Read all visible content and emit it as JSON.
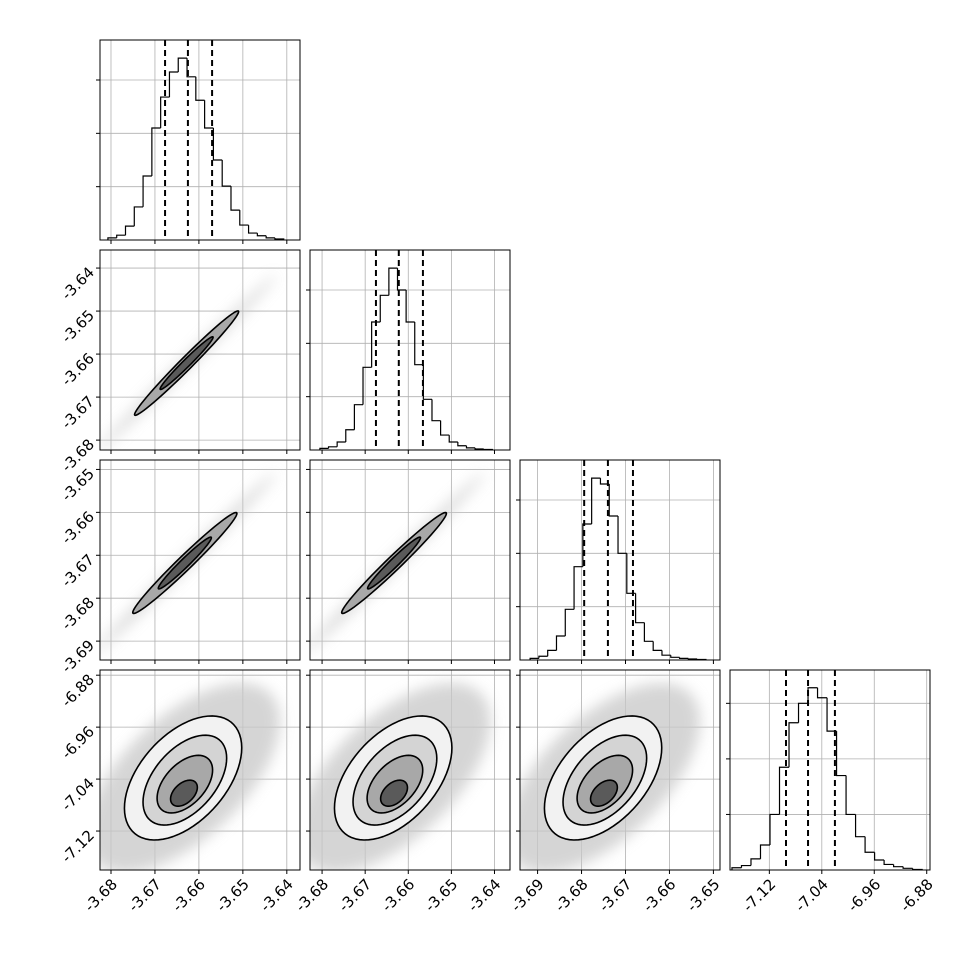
{
  "chart_data": [
    {
      "type": "histogram",
      "xlim": [
        -3.6825,
        -3.637
      ],
      "xticks": [
        -3.68,
        -3.67,
        -3.66,
        -3.65,
        -3.64
      ],
      "ylim": [
        0,
        375
      ],
      "yticks": [
        100,
        200,
        300
      ],
      "bins": [
        -3.6807,
        -3.6787,
        -3.6767,
        -3.6747,
        -3.6727,
        -3.6707,
        -3.6687,
        -3.6667,
        -3.6647,
        -3.6627,
        -3.6607,
        -3.6587,
        -3.6567,
        -3.6547,
        -3.6527,
        -3.6507,
        -3.6487,
        -3.6467,
        -3.6447,
        -3.6427,
        -3.6407
      ],
      "values": [
        4,
        9,
        26,
        62,
        120,
        210,
        268,
        315,
        341,
        306,
        262,
        210,
        150,
        101,
        56,
        28,
        13,
        8,
        4,
        2
      ],
      "quantiles": [
        -3.6677,
        -3.6625,
        -3.657
      ]
    },
    {
      "type": "density",
      "xlim": [
        -3.6825,
        -3.637
      ],
      "xticks": [
        -3.68,
        -3.67,
        -3.66,
        -3.65,
        -3.64
      ],
      "ylim": [
        -3.6823,
        -3.6358
      ],
      "yticks": [
        -3.68,
        -3.67,
        -3.66,
        -3.65,
        -3.64
      ],
      "cloud": {
        "center": [
          -3.6628,
          -3.6621
        ],
        "a": [
          0.0205,
          0.0205
        ],
        "b": [
          -0.0008,
          0.0008
        ]
      },
      "contours": [
        {
          "center": [
            -3.6628,
            -3.6621
          ],
          "a": [
            0.0118,
            0.0121
          ],
          "b": [
            -0.001,
            0.001
          ]
        },
        {
          "center": [
            -3.6628,
            -3.6621
          ],
          "a": [
            0.006,
            0.0061
          ],
          "b": [
            -0.0006,
            0.0006
          ]
        }
      ]
    },
    {
      "type": "histogram",
      "xlim": [
        -3.6828,
        -3.6364
      ],
      "xticks": [
        -3.68,
        -3.67,
        -3.66,
        -3.65,
        -3.64
      ],
      "ylim": [
        0,
        375
      ],
      "yticks": [
        100,
        200,
        300
      ],
      "bins": [
        -3.6805,
        -3.6785,
        -3.6765,
        -3.6745,
        -3.6725,
        -3.6705,
        -3.6685,
        -3.6665,
        -3.6645,
        -3.6625,
        -3.6605,
        -3.6585,
        -3.6565,
        -3.6545,
        -3.6525,
        -3.6505,
        -3.6485,
        -3.6465,
        -3.6445,
        -3.6425,
        -3.6405
      ],
      "values": [
        3,
        6,
        15,
        38,
        85,
        155,
        240,
        290,
        341,
        300,
        240,
        160,
        95,
        55,
        28,
        15,
        8,
        4,
        2,
        1
      ],
      "quantiles": [
        -3.6675,
        -3.6622,
        -3.6566
      ]
    },
    {
      "type": "density",
      "xlim": [
        -3.6825,
        -3.637
      ],
      "xticks": [
        -3.68,
        -3.67,
        -3.66,
        -3.65,
        -3.64
      ],
      "ylim": [
        -3.6944,
        -3.6478
      ],
      "yticks": [
        -3.69,
        -3.68,
        -3.67,
        -3.66,
        -3.65
      ],
      "cloud": {
        "center": [
          -3.6632,
          -3.6718
        ],
        "a": [
          0.0207,
          0.021
        ],
        "b": [
          -0.0009,
          0.0009
        ]
      },
      "contours": [
        {
          "center": [
            -3.6632,
            -3.6718
          ],
          "a": [
            0.0118,
            0.0117
          ],
          "b": [
            -0.0011,
            0.0012
          ]
        },
        {
          "center": [
            -3.6632,
            -3.6718
          ],
          "a": [
            0.006,
            0.006
          ],
          "b": [
            -0.0007,
            0.0007
          ]
        }
      ]
    },
    {
      "type": "density",
      "xlim": [
        -3.6828,
        -3.6364
      ],
      "xticks": [
        -3.68,
        -3.67,
        -3.66,
        -3.65,
        -3.64
      ],
      "ylim": [
        -3.6944,
        -3.6478
      ],
      "yticks": [
        -3.69,
        -3.68,
        -3.67,
        -3.66,
        -3.65
      ],
      "cloud": {
        "center": [
          -3.6633,
          -3.6718
        ],
        "a": [
          0.021,
          0.021
        ],
        "b": [
          -0.0009,
          0.0009
        ]
      },
      "contours": [
        {
          "center": [
            -3.6633,
            -3.6718
          ],
          "a": [
            0.0121,
            0.0117
          ],
          "b": [
            -0.0011,
            0.0012
          ]
        },
        {
          "center": [
            -3.6633,
            -3.6718
          ],
          "a": [
            0.0061,
            0.006
          ],
          "b": [
            -0.0007,
            0.0007
          ]
        }
      ]
    },
    {
      "type": "histogram",
      "xlim": [
        -3.694,
        -3.6485
      ],
      "xticks": [
        -3.69,
        -3.68,
        -3.67,
        -3.66,
        -3.65
      ],
      "ylim": [
        0,
        375
      ],
      "yticks": [
        100,
        200,
        300
      ],
      "bins": [
        -3.6917,
        -3.6897,
        -3.6877,
        -3.6857,
        -3.6837,
        -3.6817,
        -3.6797,
        -3.6777,
        -3.6757,
        -3.6737,
        -3.6717,
        -3.6697,
        -3.6677,
        -3.6657,
        -3.6637,
        -3.6617,
        -3.6597,
        -3.6577,
        -3.6557,
        -3.6537,
        -3.6517
      ],
      "values": [
        3,
        7,
        18,
        45,
        95,
        175,
        255,
        341,
        330,
        270,
        200,
        125,
        70,
        35,
        18,
        9,
        5,
        3,
        2,
        1
      ],
      "quantiles": [
        -3.6794,
        -3.674,
        -3.6683
      ]
    },
    {
      "type": "density",
      "xlim": [
        -3.6825,
        -3.637
      ],
      "xticks": [
        -3.68,
        -3.67,
        -3.66,
        -3.65,
        -3.64
      ],
      "ylim": [
        -7.18,
        -6.872
      ],
      "yticks": [
        -7.12,
        -7.04,
        -6.96,
        -6.88
      ],
      "cloud": {
        "center": [
          -3.6636,
          -7.0383
        ],
        "a": [
          0.0182,
          0.1386
        ],
        "b": [
          -0.0125,
          0.0462
        ]
      },
      "contours": [
        {
          "center": [
            -3.6636,
            -7.0383
          ],
          "a": [
            0.0102,
            0.0893
          ],
          "b": [
            -0.0086,
            0.0339
          ]
        },
        {
          "center": [
            -3.6632,
            -7.0416
          ],
          "a": [
            0.0073,
            0.0647
          ],
          "b": [
            -0.0061,
            0.0246
          ]
        },
        {
          "center": [
            -3.6632,
            -7.0478
          ],
          "a": [
            0.0048,
            0.0416
          ],
          "b": [
            -0.0041,
            0.0154
          ]
        },
        {
          "center": [
            -3.6634,
            -7.0617
          ],
          "a": [
            0.0023,
            0.0185
          ],
          "b": [
            -0.002,
            0.0077
          ]
        }
      ]
    },
    {
      "type": "density",
      "xlim": [
        -3.6828,
        -3.6364
      ],
      "xticks": [
        -3.68,
        -3.67,
        -3.66,
        -3.65,
        -3.64
      ],
      "ylim": [
        -7.18,
        -6.872
      ],
      "yticks": [
        -7.12,
        -7.04,
        -6.96,
        -6.88
      ],
      "cloud": {
        "center": [
          -3.6635,
          -7.0383
        ],
        "a": [
          0.0186,
          0.1386
        ],
        "b": [
          -0.0128,
          0.0462
        ]
      },
      "contours": [
        {
          "center": [
            -3.6635,
            -7.0383
          ],
          "a": [
            0.0104,
            0.0893
          ],
          "b": [
            -0.0088,
            0.0339
          ]
        },
        {
          "center": [
            -3.6631,
            -7.0416
          ],
          "a": [
            0.0074,
            0.0647
          ],
          "b": [
            -0.0063,
            0.0246
          ]
        },
        {
          "center": [
            -3.6631,
            -7.0478
          ],
          "a": [
            0.0049,
            0.0416
          ],
          "b": [
            -0.0042,
            0.0154
          ]
        },
        {
          "center": [
            -3.6633,
            -7.0617
          ],
          "a": [
            0.0023,
            0.0185
          ],
          "b": [
            -0.0021,
            0.0077
          ]
        }
      ]
    },
    {
      "type": "density",
      "xlim": [
        -3.694,
        -3.6485
      ],
      "xticks": [
        -3.69,
        -3.68,
        -3.67,
        -3.66,
        -3.65
      ],
      "ylim": [
        -7.18,
        -6.872
      ],
      "yticks": [
        -7.12,
        -7.04,
        -6.96,
        -6.88
      ],
      "cloud": {
        "center": [
          -3.6751,
          -7.0383
        ],
        "a": [
          0.0182,
          0.1386
        ],
        "b": [
          -0.0125,
          0.0462
        ]
      },
      "contours": [
        {
          "center": [
            -3.6751,
            -7.0383
          ],
          "a": [
            0.0102,
            0.0893
          ],
          "b": [
            -0.0086,
            0.0339
          ]
        },
        {
          "center": [
            -3.6747,
            -7.0416
          ],
          "a": [
            0.0073,
            0.0647
          ],
          "b": [
            -0.0061,
            0.0246
          ]
        },
        {
          "center": [
            -3.6747,
            -7.0478
          ],
          "a": [
            0.0048,
            0.0416
          ],
          "b": [
            -0.0041,
            0.0154
          ]
        },
        {
          "center": [
            -3.6749,
            -7.0617
          ],
          "a": [
            0.0023,
            0.0185
          ],
          "b": [
            -0.002,
            0.0077
          ]
        }
      ]
    },
    {
      "type": "histogram",
      "xlim": [
        -7.18,
        -6.875
      ],
      "xticks": [
        -7.12,
        -7.04,
        -6.96,
        -6.88
      ],
      "ylim": [
        0,
        360
      ],
      "yticks": [
        100,
        200,
        300
      ],
      "bins": [
        -7.177,
        -7.1625,
        -7.148,
        -7.1335,
        -7.119,
        -7.1045,
        -7.09,
        -7.0755,
        -7.061,
        -7.0465,
        -7.032,
        -7.0175,
        -7.003,
        -6.9885,
        -6.974,
        -6.9595,
        -6.945,
        -6.9305,
        -6.916,
        -6.9015,
        -6.887
      ],
      "values": [
        4,
        8,
        20,
        45,
        100,
        185,
        265,
        300,
        328,
        310,
        250,
        170,
        100,
        60,
        32,
        18,
        10,
        6,
        3,
        1
      ],
      "quantiles": [
        -7.0946,
        -7.061,
        -7.02
      ]
    }
  ]
}
